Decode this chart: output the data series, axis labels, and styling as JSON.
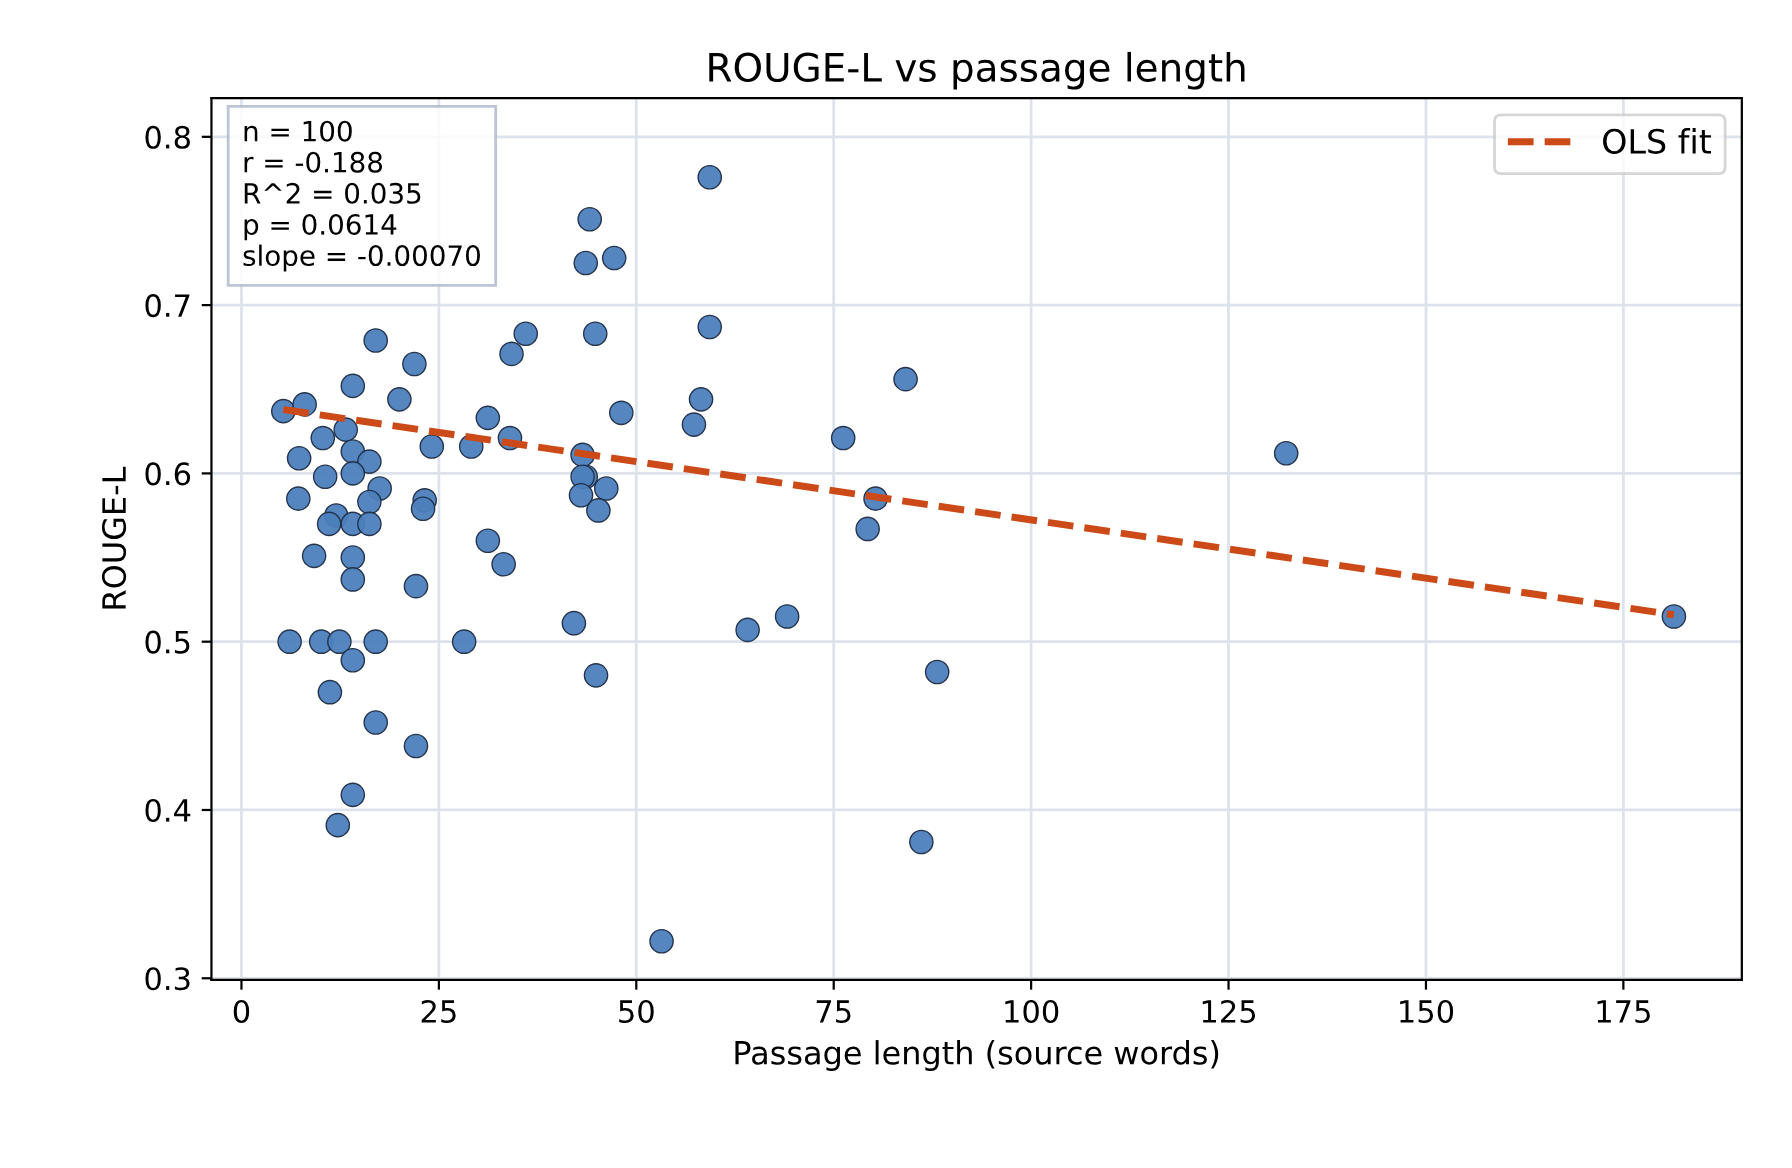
{
  "chart_data": {
    "type": "scatter",
    "title": "ROUGE-L vs passage length",
    "xlabel": "Passage length (source words)",
    "ylabel": "ROUGE-L",
    "xlim": [
      -3.8,
      190
    ],
    "ylim": [
      0.299,
      0.823
    ],
    "xticks": [
      0,
      25,
      50,
      75,
      100,
      125,
      150,
      175
    ],
    "yticks": [
      0.3,
      0.4,
      0.5,
      0.6,
      0.7,
      0.8
    ],
    "grid": true,
    "legend": "top right",
    "annotations": [
      "n = 100",
      "r = -0.188",
      "R^2 = 0.035",
      "p = 0.0614",
      "slope = -0.00070"
    ],
    "series": [
      {
        "color": "#4c80bd",
        "marker": "circle",
        "x": [
          5.3,
          8.0,
          14.1,
          20,
          21.9,
          10.3,
          13.2,
          7.3,
          14.1,
          16.2,
          24.1,
          29.1,
          31.2,
          34.0,
          34.2,
          43.6,
          44.8,
          7.2,
          10.6,
          14.1,
          17.5,
          16.2,
          12,
          23.2,
          11.1,
          14.1,
          16.2,
          23,
          9.2,
          14.1,
          14.1,
          22.1,
          31.2,
          33.2,
          42.1,
          44.9,
          6.1,
          10.1,
          12.4,
          17.0,
          28.2,
          14.1,
          11.2,
          17.0,
          22.1,
          14.1,
          12.2,
          44.1,
          43.6,
          47.2,
          59.3,
          59.3,
          48.1,
          58.2,
          57.3,
          43.2,
          43.2,
          43,
          46.2,
          45.2,
          76.2,
          80.3,
          79.3,
          84.1,
          64.1,
          69.1,
          88.1,
          86.1,
          53.2,
          132.3,
          181.4,
          17.0,
          36
        ],
        "values": [
          0.637,
          0.641,
          0.652,
          0.644,
          0.665,
          0.621,
          0.626,
          0.609,
          0.613,
          0.607,
          0.616,
          0.616,
          0.633,
          0.621,
          0.671,
          0.725,
          0.683,
          0.585,
          0.598,
          0.6,
          0.591,
          0.583,
          0.575,
          0.584,
          0.57,
          0.57,
          0.57,
          0.579,
          0.551,
          0.55,
          0.537,
          0.533,
          0.56,
          0.546,
          0.511,
          0.48,
          0.5,
          0.5,
          0.5,
          0.5,
          0.5,
          0.489,
          0.47,
          0.452,
          0.438,
          0.409,
          0.391,
          0.751,
          0.598,
          0.728,
          0.776,
          0.687,
          0.636,
          0.644,
          0.629,
          0.611,
          0.598,
          0.587,
          0.591,
          0.578,
          0.621,
          0.585,
          0.567,
          0.656,
          0.507,
          0.515,
          0.482,
          0.381,
          0.322,
          0.612,
          0.515,
          0.679,
          0.683
        ]
      },
      {
        "type": "line",
        "name": "OLS fit",
        "color": "#cc4a17",
        "line_style": "dashed",
        "x": [
          5.3,
          181.4
        ],
        "values": [
          0.638,
          0.516
        ]
      }
    ]
  }
}
